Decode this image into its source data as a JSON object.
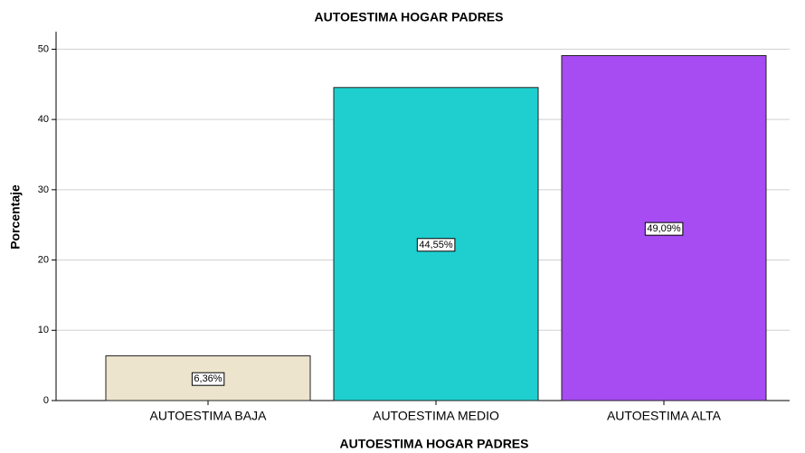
{
  "chart_data": {
    "type": "bar",
    "title": "AUTOESTIMA HOGAR PADRES",
    "x_label": "AUTOESTIMA HOGAR PADRES",
    "y_label": "Porcentaje",
    "categories": [
      "AUTOESTIMA BAJA",
      "AUTOESTIMA MEDIO",
      "AUTOESTIMA ALTA"
    ],
    "values": [
      6.36,
      44.55,
      49.09
    ],
    "value_labels": [
      "6,36%",
      "44,55%",
      "49,09%"
    ],
    "colors": [
      "#ede4ce",
      "#1fcfcf",
      "#a64cf2"
    ],
    "ylim": [
      0,
      52.5
    ],
    "yticks": [
      0,
      10,
      20,
      30,
      40,
      50
    ],
    "grid": true
  }
}
